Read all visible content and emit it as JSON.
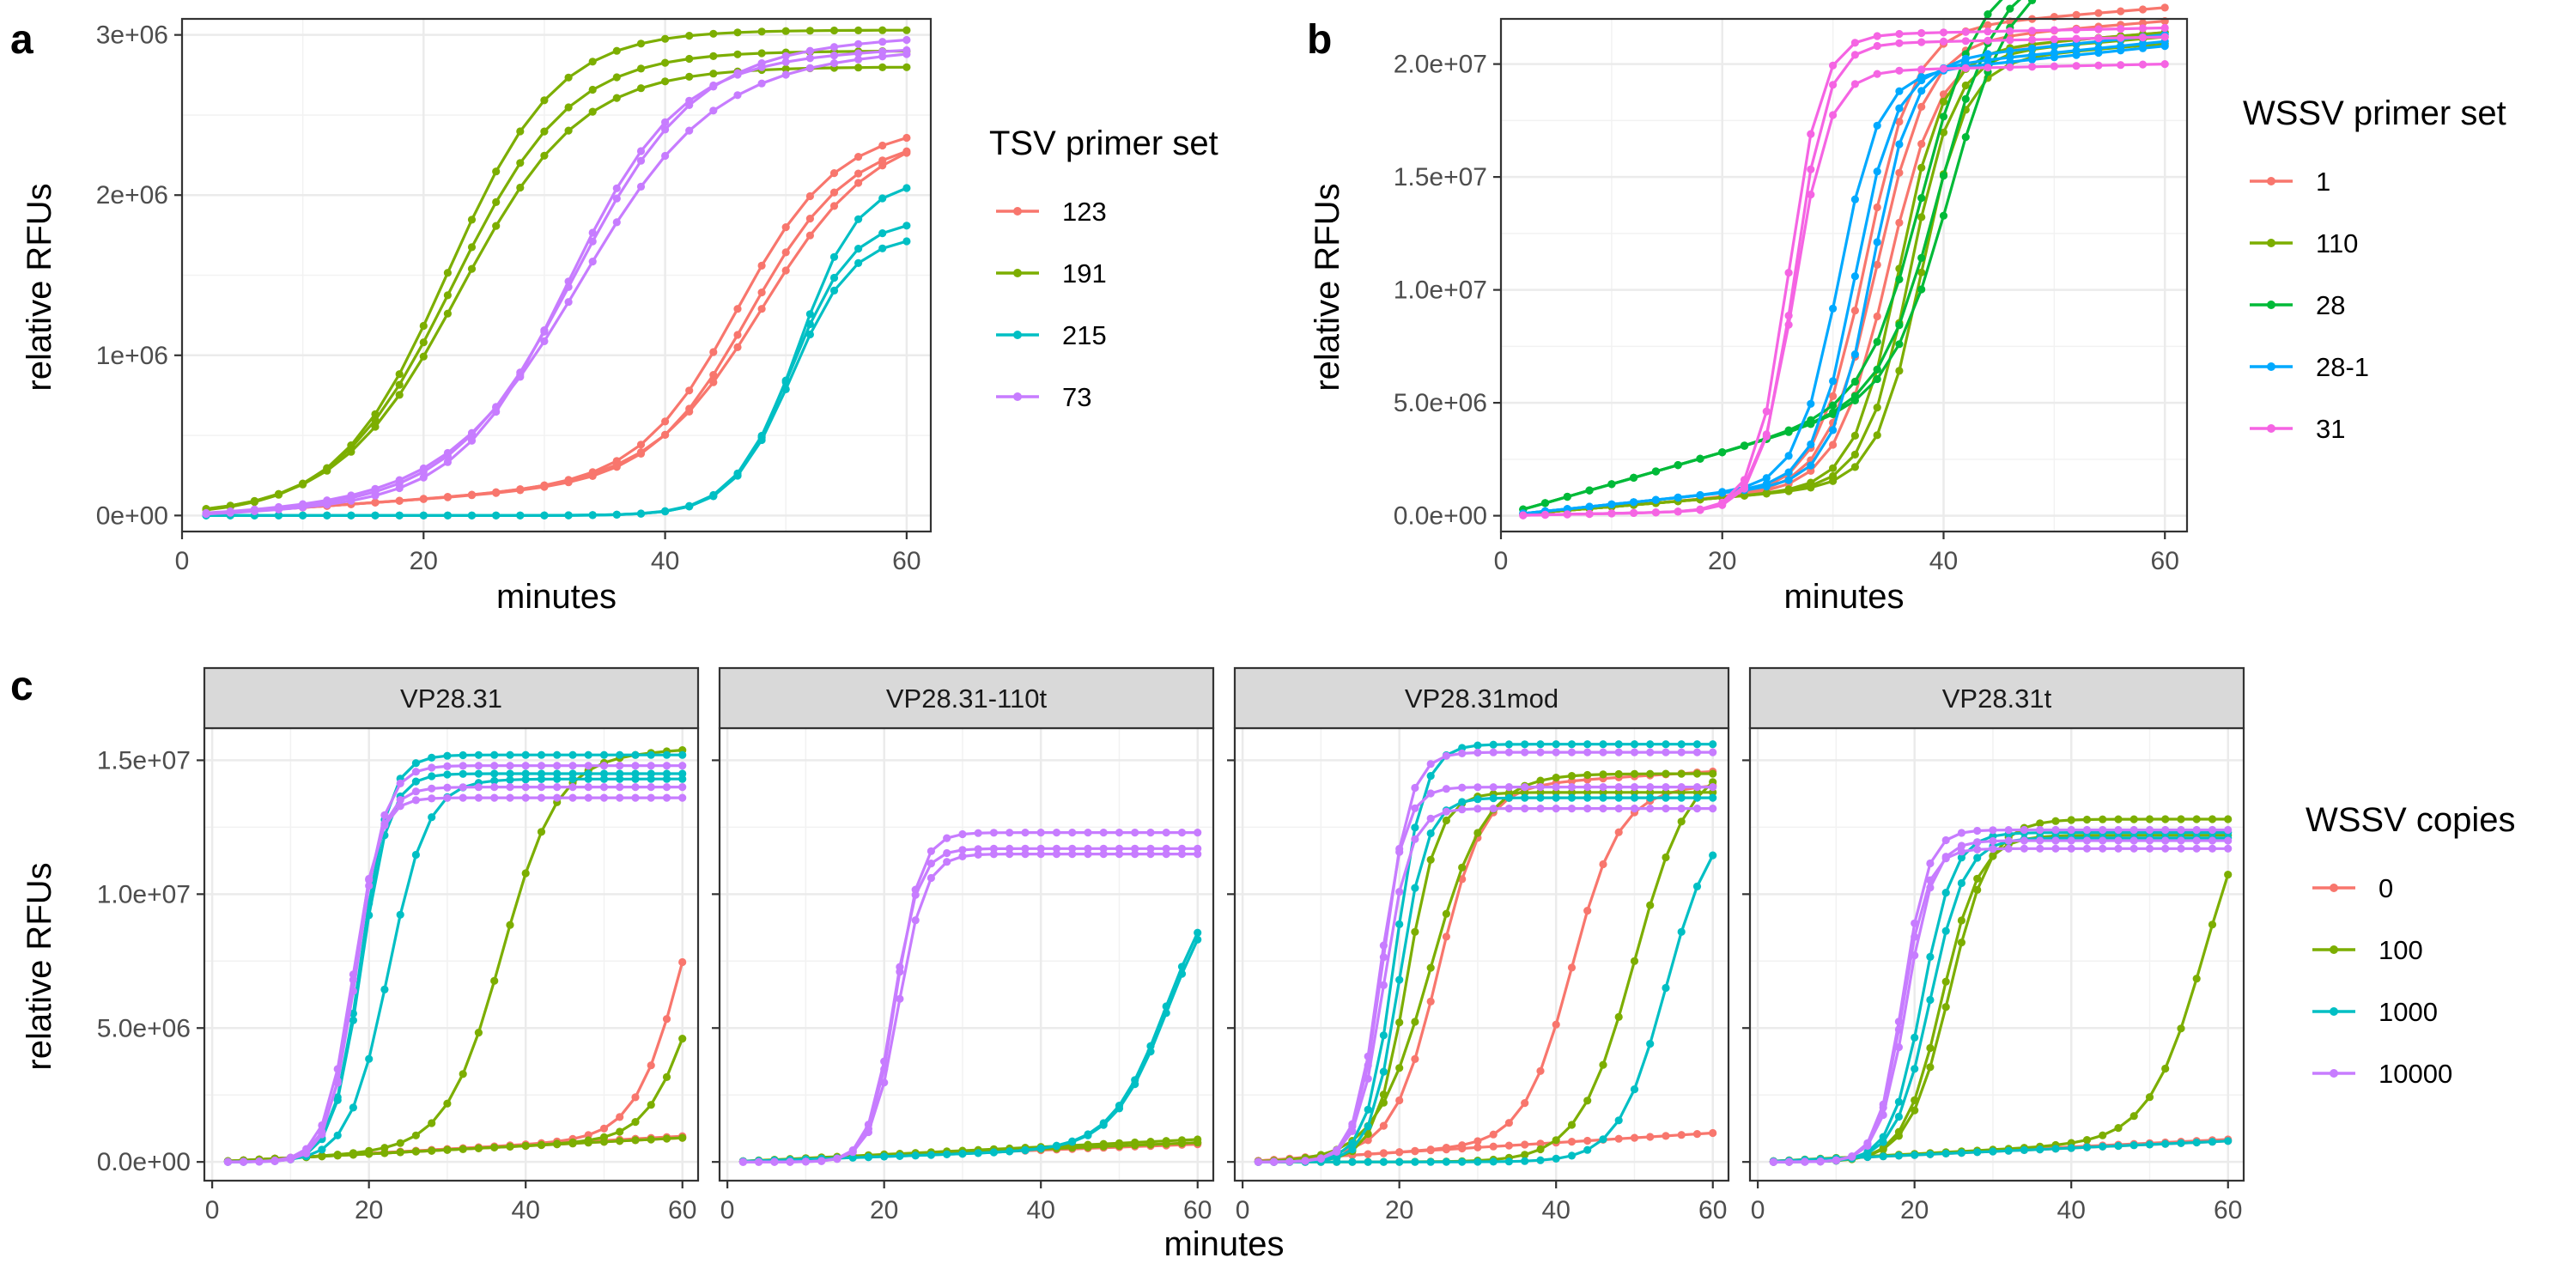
{
  "palette": {
    "red": "#f8766d",
    "olive": "#7cae00",
    "teal": "#00bfc4",
    "purple": "#c77cff",
    "green": "#00ba38",
    "blue": "#00a9ff",
    "pink": "#f564e3"
  },
  "chart_data": [
    {
      "tag": "a",
      "type": "line",
      "xlabel": "minutes",
      "ylabel": "relative RFUs",
      "xlim": [
        0,
        62
      ],
      "ylim": [
        -100000,
        3100000
      ],
      "xticks": [
        0,
        20,
        40,
        60
      ],
      "xticklabels": [
        "0",
        "20",
        "40",
        "60"
      ],
      "yticks": [
        0,
        1000000,
        2000000,
        3000000
      ],
      "yticklabels": [
        "0e+00",
        "1e+06",
        "2e+06",
        "3e+06"
      ],
      "grid": true,
      "legend": {
        "title": "TSV primer set",
        "position": "right"
      },
      "series": [
        {
          "name": "123",
          "color": "#f8766d",
          "curves": [
            {
              "base0": 0,
              "slope": 5000,
              "plateau": 2120000,
              "mid": 46,
              "k": 4
            },
            {
              "base0": 0,
              "slope": 5000,
              "plateau": 2050000,
              "mid": 47,
              "k": 4
            },
            {
              "base0": 0,
              "slope": 5000,
              "plateau": 2100000,
              "mid": 48,
              "k": 4.5
            }
          ]
        },
        {
          "name": "191",
          "color": "#7cae00",
          "curves": [
            {
              "base0": 0,
              "slope": 0,
              "plateau": 3030000,
              "mid": 22,
              "k": 4.5
            },
            {
              "base0": 0,
              "slope": 0,
              "plateau": 2900000,
              "mid": 22.5,
              "k": 4.8
            },
            {
              "base0": 0,
              "slope": 0,
              "plateau": 2800000,
              "mid": 23,
              "k": 5
            }
          ]
        },
        {
          "name": "215",
          "color": "#00bfc4",
          "curves": [
            {
              "base0": 0,
              "slope": 0,
              "plateau": 2100000,
              "mid": 51,
              "k": 2.5
            },
            {
              "base0": 0,
              "slope": 0,
              "plateau": 1850000,
              "mid": 50.5,
              "k": 2.5
            },
            {
              "base0": 0,
              "slope": 0,
              "plateau": 1750000,
              "mid": 50.5,
              "k": 2.5
            }
          ]
        },
        {
          "name": "73",
          "color": "#c77cff",
          "curves": [
            {
              "base0": 0,
              "slope": 3000,
              "plateau": 2730000,
              "mid": 32,
              "k": 4.5
            },
            {
              "base0": 0,
              "slope": 3000,
              "plateau": 2800000,
              "mid": 32.5,
              "k": 5
            },
            {
              "base0": 0,
              "slope": 3000,
              "plateau": 2720000,
              "mid": 33,
              "k": 5.5
            }
          ]
        }
      ]
    },
    {
      "tag": "b",
      "type": "line",
      "xlabel": "minutes",
      "ylabel": "relative RFUs",
      "xlim": [
        0,
        62
      ],
      "ylim": [
        -700000,
        22000000
      ],
      "xticks": [
        0,
        20,
        40,
        60
      ],
      "xticklabels": [
        "0",
        "20",
        "40",
        "60"
      ],
      "yticks": [
        0,
        5000000,
        10000000,
        15000000,
        20000000
      ],
      "yticklabels": [
        "0.0e+00",
        "5.0e+06",
        "1.0e+07",
        "1.5e+07",
        "2.0e+07"
      ],
      "grid": true,
      "legend": {
        "title": "WSSV primer set",
        "position": "right"
      },
      "series": [
        {
          "name": "1",
          "color": "#f8766d",
          "curves": [
            {
              "base0": 0,
              "slope": 40000,
              "plateau": 20100000,
              "mid": 33,
              "k": 2.2
            },
            {
              "base0": 0,
              "slope": 40000,
              "plateau": 19500000,
              "mid": 34,
              "k": 2.3
            },
            {
              "base0": 0,
              "slope": 40000,
              "plateau": 19000000,
              "mid": 35,
              "k": 2.3
            }
          ]
        },
        {
          "name": "110",
          "color": "#7cae00",
          "curves": [
            {
              "base0": 0,
              "slope": 40000,
              "plateau": 19000000,
              "mid": 36,
              "k": 2
            },
            {
              "base0": 0,
              "slope": 40000,
              "plateau": 18800000,
              "mid": 37,
              "k": 2
            },
            {
              "base0": 0,
              "slope": 40000,
              "plateau": 18500000,
              "mid": 38,
              "k": 2
            }
          ]
        },
        {
          "name": "28",
          "color": "#00ba38",
          "curves": [
            {
              "base0": 0,
              "slope": 140000,
              "plateau": 17500000,
              "mid": 38,
              "k": 2.5
            },
            {
              "base0": 0,
              "slope": 140000,
              "plateau": 17200000,
              "mid": 39.5,
              "k": 2.5
            },
            {
              "base0": 0,
              "slope": 140000,
              "plateau": 17000000,
              "mid": 40.5,
              "k": 2.6
            }
          ]
        },
        {
          "name": "28-1",
          "color": "#00a9ff",
          "curves": [
            {
              "base0": 0,
              "slope": 50000,
              "plateau": 17800000,
              "mid": 30.5,
              "k": 1.8
            },
            {
              "base0": 0,
              "slope": 50000,
              "plateau": 18000000,
              "mid": 32,
              "k": 1.8
            },
            {
              "base0": 0,
              "slope": 50000,
              "plateau": 18300000,
              "mid": 33.5,
              "k": 1.8
            }
          ]
        },
        {
          "name": "31",
          "color": "#f564e3",
          "curves": [
            {
              "base0": 0,
              "slope": 10000,
              "plateau": 21000000,
              "mid": 26,
              "k": 1.5
            },
            {
              "base0": 0,
              "slope": 10000,
              "plateau": 20600000,
              "mid": 26.5,
              "k": 1.5
            },
            {
              "base0": 0,
              "slope": 10000,
              "plateau": 19400000,
              "mid": 26.5,
              "k": 1.6
            }
          ]
        }
      ]
    },
    {
      "tag": "c",
      "type": "line",
      "facet": "VP28.31",
      "ylabel": "relative RFUs",
      "xlim": [
        -1,
        62
      ],
      "ylim": [
        -700000,
        16200000
      ],
      "xticks": [
        0,
        20,
        40,
        60
      ],
      "xticklabels": [
        "0",
        "20",
        "40",
        "60"
      ],
      "yticks": [
        0,
        5000000,
        10000000,
        15000000
      ],
      "yticklabels": [
        "0.0e+00",
        "5.0e+06",
        "1.0e+07",
        "1.5e+07"
      ],
      "grid": true,
      "series": [
        {
          "name": "0",
          "color": "#f8766d",
          "curves": [
            {
              "base0": 0,
              "slope": 16000,
              "plateau": 13000000,
              "mid": 60,
              "k": 3
            },
            {
              "base0": 0,
              "slope": 15000,
              "plateau": 0,
              "mid": 100,
              "k": 3
            },
            {
              "base0": 0,
              "slope": 16000,
              "plateau": 0,
              "mid": 100,
              "k": 3
            }
          ]
        },
        {
          "name": "100",
          "color": "#7cae00",
          "curves": [
            {
              "base0": 0,
              "slope": 15000,
              "plateau": 14500000,
              "mid": 37,
              "k": 3.5
            },
            {
              "base0": 0,
              "slope": 15000,
              "plateau": 9000000,
              "mid": 61,
              "k": 2.8
            },
            {
              "base0": 0,
              "slope": 15000,
              "plateau": 0,
              "mid": 100,
              "k": 3
            }
          ]
        },
        {
          "name": "1000",
          "color": "#00bfc4",
          "curves": [
            {
              "base0": 0,
              "slope": 0,
              "plateau": 15200000,
              "mid": 19,
              "k": 1.8
            },
            {
              "base0": 0,
              "slope": 0,
              "plateau": 14500000,
              "mid": 19,
              "k": 1.8
            },
            {
              "base0": 0,
              "slope": 0,
              "plateau": 14300000,
              "mid": 22.5,
              "k": 2.5
            }
          ]
        },
        {
          "name": "10000",
          "color": "#c77cff",
          "curves": [
            {
              "base0": 0,
              "slope": 0,
              "plateau": 14000000,
              "mid": 18,
              "k": 1.8
            },
            {
              "base0": 0,
              "slope": 0,
              "plateau": 14800000,
              "mid": 18.5,
              "k": 1.8
            },
            {
              "base0": 0,
              "slope": 0,
              "plateau": 13600000,
              "mid": 18,
              "k": 1.6
            }
          ]
        }
      ]
    },
    {
      "tag": "",
      "type": "line",
      "facet": "VP28.31-110t",
      "xlabel": "minutes",
      "xlim": [
        -1,
        62
      ],
      "ylim": [
        -700000,
        16200000
      ],
      "xticks": [
        0,
        20,
        40,
        60
      ],
      "xticklabels": [
        "0",
        "20",
        "40",
        "60"
      ],
      "grid": true,
      "series": [
        {
          "name": "0",
          "color": "#f8766d",
          "curves": [
            {
              "base0": 0,
              "slope": 12000,
              "plateau": 0,
              "mid": 100,
              "k": 3
            },
            {
              "base0": 0,
              "slope": 11000,
              "plateau": 0,
              "mid": 100,
              "k": 3
            }
          ]
        },
        {
          "name": "100",
          "color": "#7cae00",
          "curves": [
            {
              "base0": 0,
              "slope": 14000,
              "plateau": 0,
              "mid": 100,
              "k": 3
            },
            {
              "base0": 0,
              "slope": 12000,
              "plateau": 0,
              "mid": 100,
              "k": 3
            }
          ]
        },
        {
          "name": "1000",
          "color": "#00bfc4",
          "curves": [
            {
              "base0": 0,
              "slope": 10000,
              "plateau": 10500000,
              "mid": 56,
              "k": 3.5
            },
            {
              "base0": 0,
              "slope": 10000,
              "plateau": 10300000,
              "mid": 56.2,
              "k": 3.5
            }
          ]
        },
        {
          "name": "10000",
          "color": "#c77cff",
          "curves": [
            {
              "base0": 0,
              "slope": 0,
              "plateau": 12300000,
              "mid": 21.5,
              "k": 1.6
            },
            {
              "base0": 0,
              "slope": 0,
              "plateau": 11700000,
              "mid": 21.2,
              "k": 1.6
            },
            {
              "base0": 0,
              "slope": 0,
              "plateau": 11500000,
              "mid": 21.8,
              "k": 1.7
            }
          ]
        }
      ]
    },
    {
      "tag": "",
      "type": "line",
      "facet": "VP28.31mod",
      "xlim": [
        -1,
        62
      ],
      "ylim": [
        -700000,
        16200000
      ],
      "xticks": [
        0,
        20,
        40,
        60
      ],
      "xticklabels": [
        "0",
        "20",
        "40",
        "60"
      ],
      "grid": true,
      "series": [
        {
          "name": "0",
          "color": "#f8766d",
          "curves": [
            {
              "base0": 0,
              "slope": 18000,
              "plateau": 13500000,
              "mid": 25,
              "k": 2.8
            },
            {
              "base0": 0,
              "slope": 18000,
              "plateau": 13000000,
              "mid": 42,
              "k": 3
            },
            {
              "base0": 0,
              "slope": 18000,
              "plateau": 0,
              "mid": 100,
              "k": 3
            }
          ]
        },
        {
          "name": "100",
          "color": "#7cae00",
          "curves": [
            {
              "base0": 0,
              "slope": 0,
              "plateau": 14500000,
              "mid": 24,
              "k": 3.5
            },
            {
              "base0": 0,
              "slope": 0,
              "plateau": 13800000,
              "mid": 21,
              "k": 2
            },
            {
              "base0": 0,
              "slope": 0,
              "plateau": 15000000,
              "mid": 50,
              "k": 3.5
            }
          ]
        },
        {
          "name": "1000",
          "color": "#00bfc4",
          "curves": [
            {
              "base0": 0,
              "slope": 0,
              "plateau": 15600000,
              "mid": 19.5,
              "k": 1.8
            },
            {
              "base0": 0,
              "slope": 0,
              "plateau": 13600000,
              "mid": 20,
              "k": 1.8
            },
            {
              "base0": 0,
              "slope": 0,
              "plateau": 13000000,
              "mid": 54,
              "k": 3
            }
          ]
        },
        {
          "name": "10000",
          "color": "#c77cff",
          "curves": [
            {
              "base0": 0,
              "slope": 0,
              "plateau": 15300000,
              "mid": 18,
              "k": 1.7
            },
            {
              "base0": 0,
              "slope": 0,
              "plateau": 14000000,
              "mid": 17.5,
              "k": 1.6
            },
            {
              "base0": 0,
              "slope": 0,
              "plateau": 13200000,
              "mid": 18,
              "k": 1.7
            }
          ]
        }
      ]
    },
    {
      "tag": "",
      "type": "line",
      "facet": "VP28.31t",
      "xlim": [
        -1,
        62
      ],
      "ylim": [
        -700000,
        16200000
      ],
      "xticks": [
        0,
        20,
        40,
        60
      ],
      "xticklabels": [
        "0",
        "20",
        "40",
        "60"
      ],
      "grid": true,
      "legend": {
        "title": "WSSV copies",
        "position": "right"
      },
      "series": [
        {
          "name": "0",
          "color": "#f8766d",
          "curves": [
            {
              "base0": 0,
              "slope": 14000,
              "plateau": 0,
              "mid": 100,
              "k": 3
            },
            {
              "base0": 0,
              "slope": 13000,
              "plateau": 0,
              "mid": 100,
              "k": 3
            }
          ]
        },
        {
          "name": "100",
          "color": "#7cae00",
          "curves": [
            {
              "base0": 0,
              "slope": 0,
              "plateau": 12800000,
              "mid": 24.5,
              "k": 2.6
            },
            {
              "base0": 0,
              "slope": 0,
              "plateau": 12200000,
              "mid": 23.5,
              "k": 2.4
            },
            {
              "base0": 0,
              "slope": 15000,
              "plateau": 14000000,
              "mid": 57,
              "k": 3.5
            }
          ]
        },
        {
          "name": "1000",
          "color": "#00bfc4",
          "curves": [
            {
              "base0": 0,
              "slope": 0,
              "plateau": 12300000,
              "mid": 21,
              "k": 2
            },
            {
              "base0": 0,
              "slope": 0,
              "plateau": 12100000,
              "mid": 22,
              "k": 2.2
            },
            {
              "base0": 0,
              "slope": 13000,
              "plateau": 0,
              "mid": 100,
              "k": 3
            }
          ]
        },
        {
          "name": "10000",
          "color": "#c77cff",
          "curves": [
            {
              "base0": 0,
              "slope": 0,
              "plateau": 12400000,
              "mid": 18.5,
              "k": 1.6
            },
            {
              "base0": 0,
              "slope": 0,
              "plateau": 12000000,
              "mid": 19,
              "k": 1.7
            },
            {
              "base0": 0,
              "slope": 0,
              "plateau": 11700000,
              "mid": 18.5,
              "k": 1.6
            }
          ]
        }
      ]
    }
  ]
}
